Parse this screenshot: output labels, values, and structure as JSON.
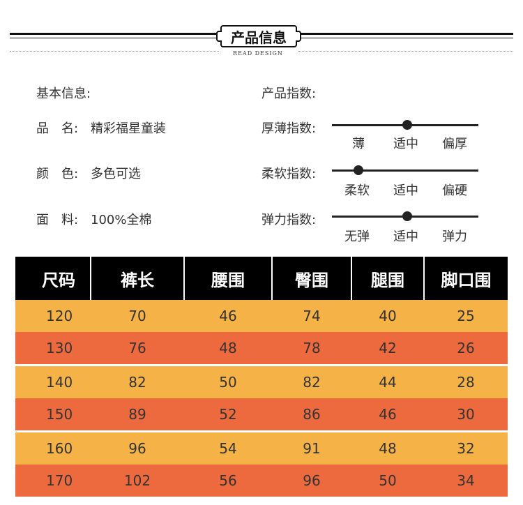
{
  "header": {
    "title": "产品信息",
    "subtitle": "READ DESIGN"
  },
  "basic_info": {
    "heading": "基本信息:",
    "rows": [
      {
        "label": "品　名:",
        "value": "精彩福星童装"
      },
      {
        "label": "颜　色:",
        "value": "多色可选"
      },
      {
        "label": "面　料:",
        "value": "100%全棉"
      }
    ]
  },
  "product_index": {
    "heading": "产品指数:",
    "rows": [
      {
        "label": "厚薄指数:",
        "options": [
          "薄",
          "适中",
          "偏厚"
        ],
        "selected": "适中"
      },
      {
        "label": "柔软指数:",
        "options": [
          "柔软",
          "适中",
          "偏硬"
        ],
        "selected": "柔软"
      },
      {
        "label": "弹力指数:",
        "options": [
          "无弹",
          "适中",
          "弹力"
        ],
        "selected": "适中"
      }
    ]
  },
  "size_table": {
    "headers": [
      "尺码",
      "裤长",
      "腰围",
      "臀围",
      "腿围",
      "脚口围"
    ],
    "rows": [
      [
        "120",
        "70",
        "46",
        "74",
        "40",
        "25"
      ],
      [
        "130",
        "76",
        "48",
        "78",
        "42",
        "26"
      ],
      [
        "140",
        "82",
        "50",
        "82",
        "44",
        "28"
      ],
      [
        "150",
        "89",
        "52",
        "86",
        "46",
        "30"
      ],
      [
        "160",
        "96",
        "54",
        "91",
        "48",
        "32"
      ],
      [
        "170",
        "102",
        "56",
        "96",
        "50",
        "34"
      ]
    ],
    "colors": {
      "header": "#000000",
      "odd": "#f5b246",
      "even": "#ec6a3d"
    }
  }
}
